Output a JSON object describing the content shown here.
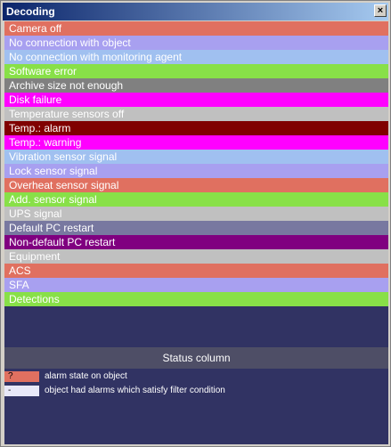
{
  "window": {
    "title": "Decoding",
    "close_label": "×"
  },
  "rows": [
    {
      "label": "Camera off",
      "bg": "#e07060"
    },
    {
      "label": "No connection with object",
      "bg": "#a8a0f0"
    },
    {
      "label": "No connection with monitoring agent",
      "bg": "#a0c0f0"
    },
    {
      "label": "Software error",
      "bg": "#88e048"
    },
    {
      "label": "Archive size not enough",
      "bg": "#808080"
    },
    {
      "label": "Disk failure",
      "bg": "#ff00ff"
    },
    {
      "label": "Temperature sensors off",
      "bg": "#c0c0c0"
    },
    {
      "label": "Temp.: alarm",
      "bg": "#800000"
    },
    {
      "label": "Temp.: warning",
      "bg": "#ff00ff"
    },
    {
      "label": "Vibration sensor signal",
      "bg": "#a0c0f0"
    },
    {
      "label": "Lock sensor signal",
      "bg": "#a8a0f0"
    },
    {
      "label": "Overheat sensor signal",
      "bg": "#e07060"
    },
    {
      "label": "Add. sensor signal",
      "bg": "#88e048"
    },
    {
      "label": "UPS signal",
      "bg": "#c0c0c0"
    },
    {
      "label": "Default PC restart",
      "bg": "#7878a0"
    },
    {
      "label": "Non-default PC restart",
      "bg": "#800080"
    },
    {
      "label": "Equipment",
      "bg": "#c0c0c0"
    },
    {
      "label": "ACS",
      "bg": "#e07060"
    },
    {
      "label": "SFA",
      "bg": "#a8a0f0"
    },
    {
      "label": "Detections",
      "bg": "#88e048"
    }
  ],
  "status_column": {
    "title": "Status column",
    "legend": [
      {
        "symbol": "?",
        "bg": "#e07060",
        "text": "alarm state on object"
      },
      {
        "symbol": "-",
        "bg": "#e8e8f8",
        "text": "object had alarms which satisfy filter condition"
      }
    ]
  },
  "colors": {
    "panel_bg": "#313363",
    "header_bg": "#4e4e66"
  }
}
